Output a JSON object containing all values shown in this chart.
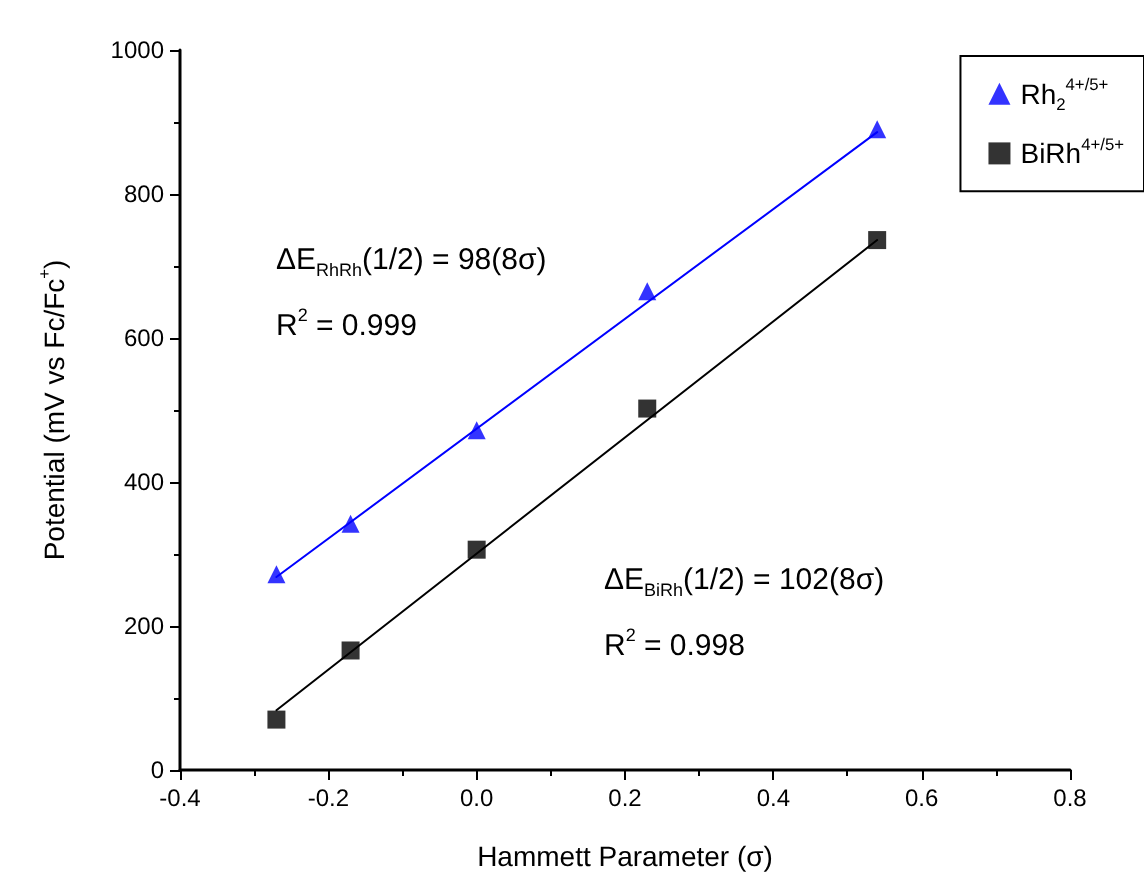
{
  "chart_data": {
    "type": "scatter",
    "xlabel": "Hammett Parameter (σ)",
    "ylabel": "Potential (mV vs Fc/Fc$^{+}$)",
    "xlim": [
      -0.4,
      0.8
    ],
    "ylim": [
      0,
      1000
    ],
    "xticks": [
      {
        "value": -0.4,
        "label": "-0.4"
      },
      {
        "value": -0.2,
        "label": "-0.2"
      },
      {
        "value": 0,
        "label": "0.0"
      },
      {
        "value": 0.2,
        "label": "0.2"
      },
      {
        "value": 0.4,
        "label": "0.4"
      },
      {
        "value": 0.6,
        "label": "0.6"
      },
      {
        "value": 0.8,
        "label": "0.8"
      }
    ],
    "yticks": [
      0,
      200,
      400,
      600,
      800,
      1000
    ],
    "grid": false,
    "legend": "top right",
    "annotations": [
      "ΔE$_{RhRh}$(1/2) = 98(8σ)",
      "R$^{2}$ = 0.999",
      "ΔE$_{BiRh}$(1/2) = 102(8σ)",
      "R$^{2}$ = 0.998"
    ],
    "series": [
      {
        "name": "Rh$_{2}$$^{4+/5+}$",
        "marker": "triangle",
        "color": "#0000ff",
        "x": [
          -0.27,
          -0.17,
          0,
          0.23,
          0.54
        ],
        "values": [
          272,
          342,
          472,
          665,
          890
        ]
      },
      {
        "name": "BiRh$^{4+/5+}$",
        "marker": "square",
        "color": "#000000",
        "x": [
          -0.27,
          -0.17,
          0,
          0.23,
          0.54
        ],
        "values": [
          70,
          166,
          306,
          502,
          736
        ]
      },
      {
        "type": "line",
        "marker": "none",
        "color": "#0000ff",
        "x": [
          -0.27,
          0.54
        ],
        "values": [
          268,
          886
        ]
      },
      {
        "type": "line",
        "marker": "none",
        "color": "#000000",
        "x": [
          -0.27,
          0.54
        ],
        "values": [
          83,
          736
        ]
      }
    ]
  }
}
